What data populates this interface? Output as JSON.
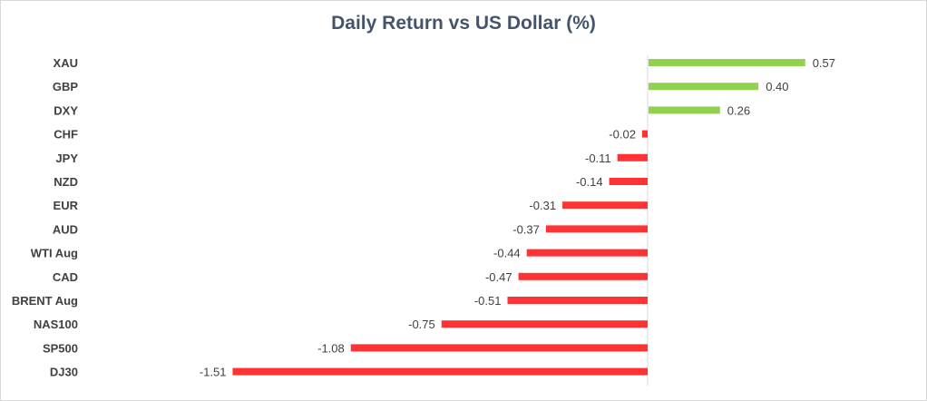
{
  "chart_data": {
    "type": "bar",
    "orientation": "horizontal",
    "title": "Daily Return vs US Dollar (%)",
    "xlabel": "",
    "ylabel": "",
    "xlim": [
      -1.51,
      0.57
    ],
    "grid": false,
    "legend": "none",
    "categories": [
      "XAU",
      "GBP",
      "DXY",
      "CHF",
      "JPY",
      "NZD",
      "EUR",
      "AUD",
      "WTI Aug",
      "CAD",
      "BRENT Aug",
      "NAS100",
      "SP500",
      "DJ30"
    ],
    "values": [
      0.57,
      0.4,
      0.26,
      -0.02,
      -0.11,
      -0.14,
      -0.31,
      -0.37,
      -0.44,
      -0.47,
      -0.51,
      -0.75,
      -1.08,
      -1.51
    ],
    "value_labels": [
      "0.57",
      "0.40",
      "0.26",
      "-0.02",
      "-0.11",
      "-0.14",
      "-0.31",
      "-0.37",
      "-0.44",
      "-0.47",
      "-0.51",
      "-0.75",
      "-1.08",
      "-1.51"
    ]
  },
  "colors": {
    "positive": "#92d050",
    "negative": "#ff3333",
    "axis": "#d9d9d9",
    "title": "#44546a",
    "text": "#404040"
  }
}
